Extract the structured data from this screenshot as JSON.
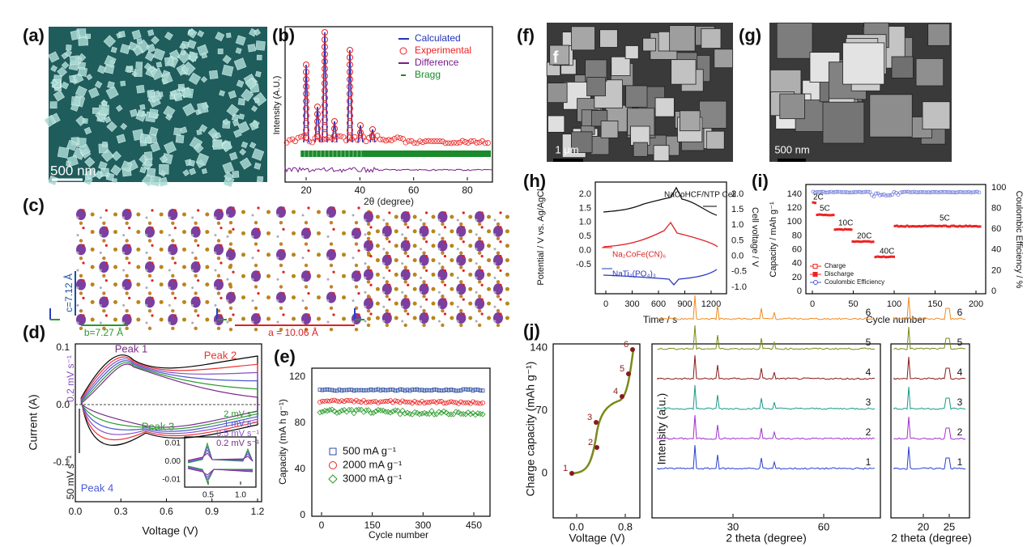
{
  "a": {
    "label": "(a)",
    "scale_bar": "500 nm"
  },
  "b": {
    "label": "(b)",
    "y_label": "Intensity (A.U.)",
    "x_label": "2θ (degree)",
    "x_ticks": [
      20,
      40,
      60,
      80
    ],
    "legend": [
      "Calculated",
      "Experimental",
      "Difference",
      "Bragg"
    ]
  },
  "c": {
    "label": "(c)",
    "dimensions": [
      "c=7.12 Å",
      "b=7.27 Å",
      "a = 10.06 Å"
    ]
  },
  "d": {
    "label": "(d)",
    "y_label": "Current (A)",
    "x_label": "Voltage (V)",
    "x_ticks": [
      "0.0",
      "0.3",
      "0.6",
      "0.9",
      "1.2"
    ],
    "y_ticks": [
      "-0.1",
      "0.0",
      "0.1"
    ],
    "peaks": [
      "Peak 1",
      "Peak 2",
      "Peak 3",
      "Peak 4"
    ],
    "scan_range": [
      "0.2 mV s⁻¹",
      "50 mV s⁻¹"
    ],
    "inset": {
      "legend": [
        "2 mV s⁻¹",
        "1 mV s⁻¹",
        "0.5 mV s⁻¹",
        "0.2 mV s⁻¹"
      ],
      "y_ticks": [
        "-0.01",
        "0.00",
        "0.01"
      ],
      "x_ticks": [
        "0.5",
        "1.0"
      ]
    }
  },
  "e": {
    "label": "(e)",
    "y_label": "Capacity (mA h g⁻¹)",
    "x_label": "Cycle number",
    "x_ticks": [
      0,
      150,
      300,
      450
    ],
    "y_ticks": [
      0,
      40,
      80,
      120
    ],
    "legend": [
      "500 mA g⁻¹",
      "2000 mA g⁻¹",
      "3000 mA g⁻¹"
    ]
  },
  "f": {
    "label": "(f)",
    "inner_label": "f",
    "scale_bar": "1 μm"
  },
  "g": {
    "label": "(g)",
    "scale_bar": "500 nm"
  },
  "h": {
    "label": "(h)",
    "y_label": "Potential / V vs. Ag/AgCl",
    "y2_label": "Cell voltage / V",
    "x_label": "Time / s",
    "x_ticks": [
      0,
      300,
      600,
      900,
      1200
    ],
    "y_ticks": [
      "-0.5",
      "0.0",
      "0.5",
      "1.0",
      "1.5",
      "2.0"
    ],
    "y2_ticks": [
      "-1.0",
      "-0.5",
      "0.0",
      "0.5",
      "1.0",
      "1.5",
      "2.0"
    ],
    "annotations": [
      "NaCoHCF/NTP Cell",
      "Na₂CoFe(CN)₆",
      "NaTi₂(PO₄)₃"
    ]
  },
  "i": {
    "label": "(i)",
    "y_label": "Capacity / mAh g⁻¹",
    "y2_label": "Coulombic Efficiency / %",
    "x_label": "Cycle number",
    "x_ticks": [
      0,
      50,
      100,
      150,
      200
    ],
    "y_ticks": [
      0,
      20,
      40,
      60,
      80,
      100,
      120,
      140
    ],
    "y2_ticks": [
      0,
      20,
      40,
      60,
      80,
      100
    ],
    "rates": [
      "2C",
      "5C",
      "10C",
      "20C",
      "40C",
      "5C"
    ],
    "legend": [
      "Charge",
      "Discharge",
      "Coulombic Efficiency"
    ]
  },
  "j": {
    "label": "(j)",
    "y_label": "Charge capacity (mAh g⁻¹)",
    "x_label": "Voltage (V)",
    "y_ticks": [
      0,
      70,
      140
    ],
    "x_ticks": [
      "0.0",
      "0.8"
    ],
    "points": [
      "1",
      "2",
      "3",
      "4",
      "5",
      "6"
    ],
    "xrd_y_label": "Intensity (a.u.)",
    "xrd_x_label": "2 theta (degree)",
    "xrd_x_ticks": [
      30,
      60
    ],
    "zoom_x_label": "2 theta (degree)",
    "zoom_x_ticks": [
      20,
      25
    ],
    "traces": [
      "1",
      "2",
      "3",
      "4",
      "5",
      "6"
    ]
  }
}
